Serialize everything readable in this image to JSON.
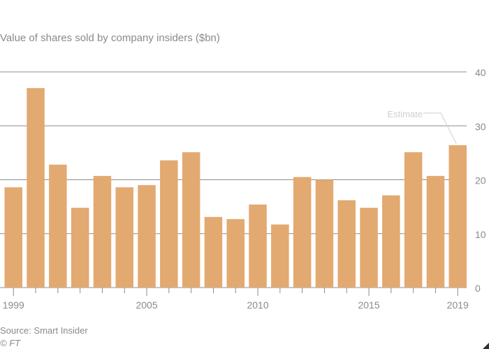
{
  "chart_data": {
    "type": "bar",
    "title": "Value of shares sold by company insiders ($bn)",
    "xlabel": "",
    "ylabel": "",
    "categories": [
      "1999",
      "2000",
      "2001",
      "2002",
      "2003",
      "2004",
      "2005",
      "2006",
      "2007",
      "2008",
      "2009",
      "2010",
      "2011",
      "2012",
      "2013",
      "2014",
      "2015",
      "2016",
      "2017",
      "2018",
      "2019"
    ],
    "values": [
      18.6,
      37.0,
      22.8,
      14.8,
      20.7,
      18.6,
      19.0,
      23.6,
      25.1,
      13.1,
      12.7,
      15.4,
      11.7,
      20.5,
      20.0,
      16.2,
      14.8,
      17.1,
      25.1,
      20.7,
      26.4
    ],
    "ylim": [
      0,
      40
    ],
    "yticks": [
      0,
      10,
      20,
      30,
      40
    ],
    "xtick_labels": [
      "1999",
      "2005",
      "2010",
      "2015",
      "2019"
    ],
    "grid": true,
    "y_axis_side": "right",
    "bar_color": "#e2a971",
    "annotation": {
      "text": "Estimate",
      "category": "2019"
    }
  },
  "footer": {
    "source": "Source: Smart Insider",
    "credit": "© FT"
  }
}
